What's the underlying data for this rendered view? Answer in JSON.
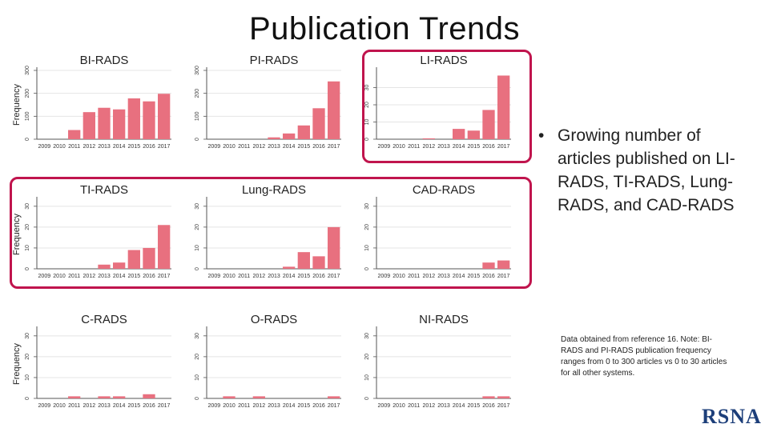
{
  "title": "Publication Trends",
  "bullet": "Growing number of articles published on LI-RADS, TI-RADS, Lung-RADS, and CAD-RADS",
  "note": "Data obtained from reference 16. Note: BI-RADS and PI-RADS publication frequency ranges from 0 to 300 articles vs 0 to 30 articles for all other systems.",
  "logo": "RSNA",
  "colors": {
    "bar": "#e8707f",
    "highlight": "#c0144d",
    "grid": "#e4e4e4",
    "axis": "#555555"
  },
  "chart_data": [
    {
      "type": "bar",
      "title": "BI-RADS",
      "ylabel": "Frequency",
      "categories": [
        "2009",
        "2010",
        "2011",
        "2012",
        "2013",
        "2014",
        "2015",
        "2016",
        "2017"
      ],
      "values": [
        0,
        0,
        40,
        118,
        137,
        130,
        178,
        165,
        198
      ],
      "ylim": [
        0,
        300
      ],
      "yticks": [
        0,
        100,
        200,
        300
      ],
      "grid": true
    },
    {
      "type": "bar",
      "title": "PI-RADS",
      "ylabel": "",
      "categories": [
        "2009",
        "2010",
        "2011",
        "2012",
        "2013",
        "2014",
        "2015",
        "2016",
        "2017"
      ],
      "values": [
        0,
        0,
        0,
        0,
        8,
        25,
        60,
        135,
        252
      ],
      "ylim": [
        0,
        300
      ],
      "yticks": [
        0,
        100,
        200,
        300
      ],
      "grid": true
    },
    {
      "type": "bar",
      "title": "LI-RADS",
      "ylabel": "",
      "categories": [
        "2009",
        "2010",
        "2011",
        "2012",
        "2013",
        "2014",
        "2015",
        "2016",
        "2017"
      ],
      "values": [
        0,
        0,
        0,
        0.5,
        0,
        6,
        5,
        17,
        37
      ],
      "ylim": [
        0,
        40
      ],
      "yticks": [
        0,
        10,
        20,
        30
      ],
      "grid": true
    },
    {
      "type": "bar",
      "title": "TI-RADS",
      "ylabel": "Frequency",
      "categories": [
        "2009",
        "2010",
        "2011",
        "2012",
        "2013",
        "2014",
        "2015",
        "2016",
        "2017"
      ],
      "values": [
        0,
        0,
        0,
        0,
        2,
        3,
        9,
        10,
        21
      ],
      "ylim": [
        0,
        33
      ],
      "yticks": [
        0,
        10,
        20,
        30
      ],
      "grid": true
    },
    {
      "type": "bar",
      "title": "Lung-RADS",
      "ylabel": "",
      "categories": [
        "2009",
        "2010",
        "2011",
        "2012",
        "2013",
        "2014",
        "2015",
        "2016",
        "2017"
      ],
      "values": [
        0,
        0,
        0,
        0,
        0,
        1,
        8,
        6,
        20
      ],
      "ylim": [
        0,
        33
      ],
      "yticks": [
        0,
        10,
        20,
        30
      ],
      "grid": true
    },
    {
      "type": "bar",
      "title": "CAD-RADS",
      "ylabel": "",
      "categories": [
        "2009",
        "2010",
        "2011",
        "2012",
        "2013",
        "2014",
        "2015",
        "2016",
        "2017"
      ],
      "values": [
        0,
        0,
        0,
        0,
        0,
        0,
        0,
        3,
        4
      ],
      "ylim": [
        0,
        33
      ],
      "yticks": [
        0,
        10,
        20,
        30
      ],
      "grid": true
    },
    {
      "type": "bar",
      "title": "C-RADS",
      "ylabel": "Frequency",
      "categories": [
        "2009",
        "2010",
        "2011",
        "2012",
        "2013",
        "2014",
        "2015",
        "2016",
        "2017"
      ],
      "values": [
        0,
        0,
        1,
        0,
        1,
        1,
        0,
        2,
        0
      ],
      "ylim": [
        0,
        33
      ],
      "yticks": [
        0,
        10,
        20,
        30
      ],
      "grid": true
    },
    {
      "type": "bar",
      "title": "O-RADS",
      "ylabel": "",
      "categories": [
        "2009",
        "2010",
        "2011",
        "2012",
        "2013",
        "2014",
        "2015",
        "2016",
        "2017"
      ],
      "values": [
        0,
        1,
        0,
        1,
        0,
        0,
        0,
        0,
        1
      ],
      "ylim": [
        0,
        33
      ],
      "yticks": [
        0,
        10,
        20,
        30
      ],
      "grid": true
    },
    {
      "type": "bar",
      "title": "NI-RADS",
      "ylabel": "",
      "categories": [
        "2009",
        "2010",
        "2011",
        "2012",
        "2013",
        "2014",
        "2015",
        "2016",
        "2017"
      ],
      "values": [
        0,
        0,
        0,
        0,
        0,
        0,
        0,
        1,
        1
      ],
      "ylim": [
        0,
        33
      ],
      "yticks": [
        0,
        10,
        20,
        30
      ],
      "grid": true
    }
  ]
}
